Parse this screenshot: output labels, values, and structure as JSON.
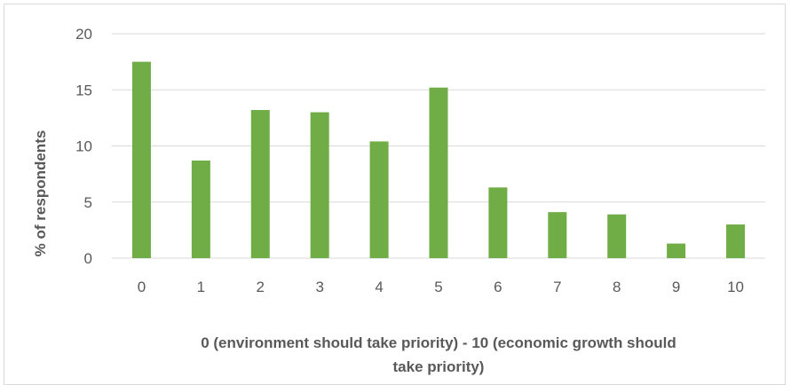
{
  "chart_data": {
    "type": "bar",
    "title": "",
    "categories": [
      "0",
      "1",
      "2",
      "3",
      "4",
      "5",
      "6",
      "7",
      "8",
      "9",
      "10"
    ],
    "values": [
      17.5,
      8.7,
      13.2,
      13.0,
      10.4,
      15.2,
      6.3,
      4.1,
      3.9,
      1.3,
      3.0
    ],
    "xlabel_lines": [
      "0 (environment should take priority) - 10 (economic growth should",
      "take priority)"
    ],
    "ylabel": "% of respondents",
    "ylim": [
      0,
      20
    ],
    "yticks": [
      "0",
      "5",
      "10",
      "15",
      "20"
    ],
    "grid": true,
    "legend": "none",
    "bar_color": "#70ad47",
    "grid_color": "#d9d9d9"
  }
}
